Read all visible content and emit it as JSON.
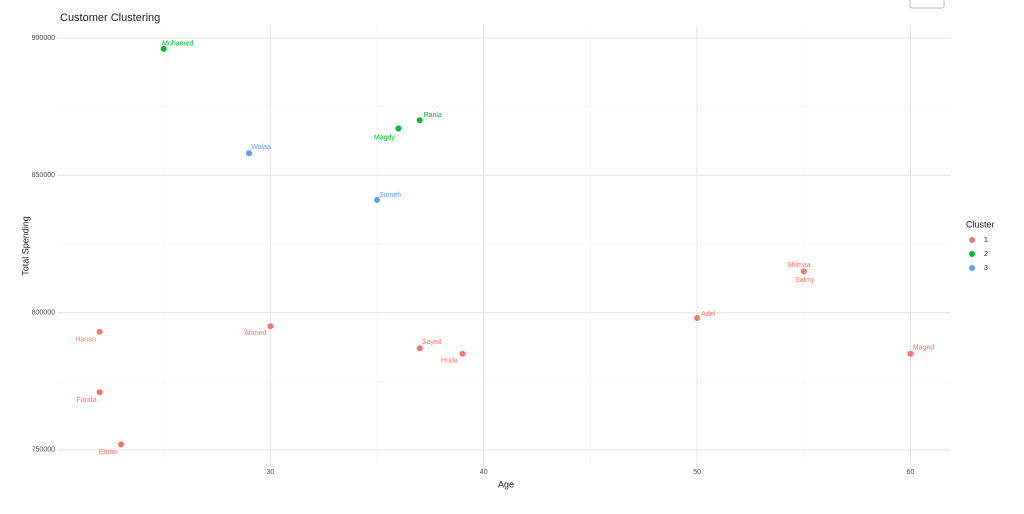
{
  "chart_data": {
    "type": "scatter",
    "title": "Customer Clustering",
    "x_label": "Age",
    "y_label": "Total Spending",
    "legend_title": "Cluster",
    "legend_position": "right",
    "grid": true,
    "xlim": [
      20,
      61.9
    ],
    "ylim": [
      744500,
      904700
    ],
    "xticks": [
      30,
      40,
      50,
      60
    ],
    "yticks": [
      750000,
      800000,
      850000,
      900000
    ],
    "x_minor_ticks": [
      25,
      35,
      45,
      55
    ],
    "y_minor_ticks": [
      775000,
      825000,
      875000
    ],
    "series": [
      {
        "name": "1",
        "color": "#F8766D",
        "labels": [
          "Hanan",
          "Ahmed",
          "Adel",
          "Shimaa",
          "Salmy",
          "Sayed",
          "Huda",
          "Maged",
          "Farida",
          "Eman"
        ],
        "x": [
          22,
          30,
          50,
          55,
          55,
          37,
          39,
          60,
          22,
          23
        ],
        "values": [
          793000,
          795000,
          798000,
          815000,
          815000,
          787000,
          785000,
          785000,
          771000,
          752000
        ]
      },
      {
        "name": "2",
        "color": "#00BA38",
        "labels": [
          "Mohamed",
          "Rania",
          "Magdy"
        ],
        "x": [
          25,
          37,
          36
        ],
        "values": [
          896000,
          870000,
          867000
        ]
      },
      {
        "name": "3",
        "color": "#619CFF",
        "labels": [
          "Walaa",
          "Sameh"
        ],
        "x": [
          29,
          35
        ],
        "values": [
          858000,
          841000
        ]
      }
    ]
  }
}
